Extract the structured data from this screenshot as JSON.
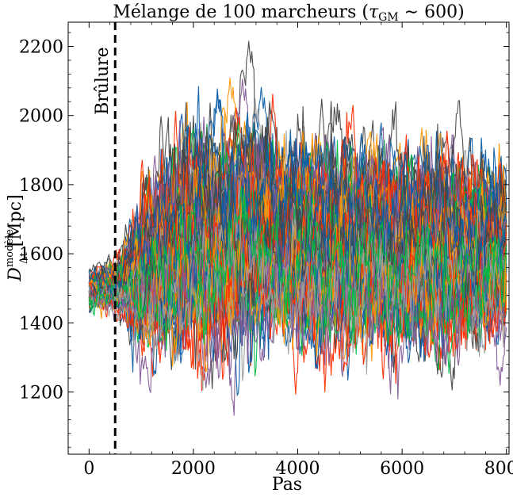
{
  "chart_data": {
    "type": "line",
    "title": "Mélange de 100 marcheurs (τ_GM ∼ 600)",
    "title_parts": {
      "prefix": "Mélange de 100 marcheurs (",
      "tau": "τ",
      "tau_sub": "GM",
      "suffix": " ∼ 600)"
    },
    "xlabel": "Pas",
    "ylabel": "D_Δt^modèle [Mpc]",
    "ylabel_parts": {
      "main": "D",
      "sub": "Δt",
      "sup": "modèle",
      "unit": " [Mpc]"
    },
    "xlim": [
      -400,
      8050
    ],
    "ylim": [
      1020,
      2270
    ],
    "x_ticks": [
      0,
      2000,
      4000,
      6000,
      8000
    ],
    "x_tick_labels": [
      "0",
      "2000",
      "4000",
      "6000",
      "8000"
    ],
    "y_ticks": [
      1200,
      1400,
      1600,
      1800,
      2000,
      2200
    ],
    "y_tick_labels": [
      "1200",
      "1400",
      "1600",
      "1800",
      "2000",
      "2200"
    ],
    "grid": false,
    "annotations": [
      {
        "text": "Brûlure",
        "x": 500,
        "orientation": "vertical",
        "line": "dashed",
        "color": "#000000"
      }
    ],
    "n_walkers": 100,
    "n_steps": 8000,
    "burn_in_step": 500,
    "walker_colors": [
      "#0C5DA5",
      "#00B945",
      "#FF9500",
      "#FF2C00",
      "#845B97",
      "#474747",
      "#9E9E9E"
    ],
    "series_envelope": {
      "x": [
        0,
        500,
        1000,
        2000,
        3000,
        4000,
        5000,
        6000,
        7000,
        8000
      ],
      "median": [
        1500,
        1510,
        1560,
        1640,
        1640,
        1620,
        1610,
        1600,
        1600,
        1610
      ],
      "spread": [
        40,
        45,
        150,
        190,
        190,
        170,
        170,
        170,
        170,
        160
      ]
    }
  }
}
